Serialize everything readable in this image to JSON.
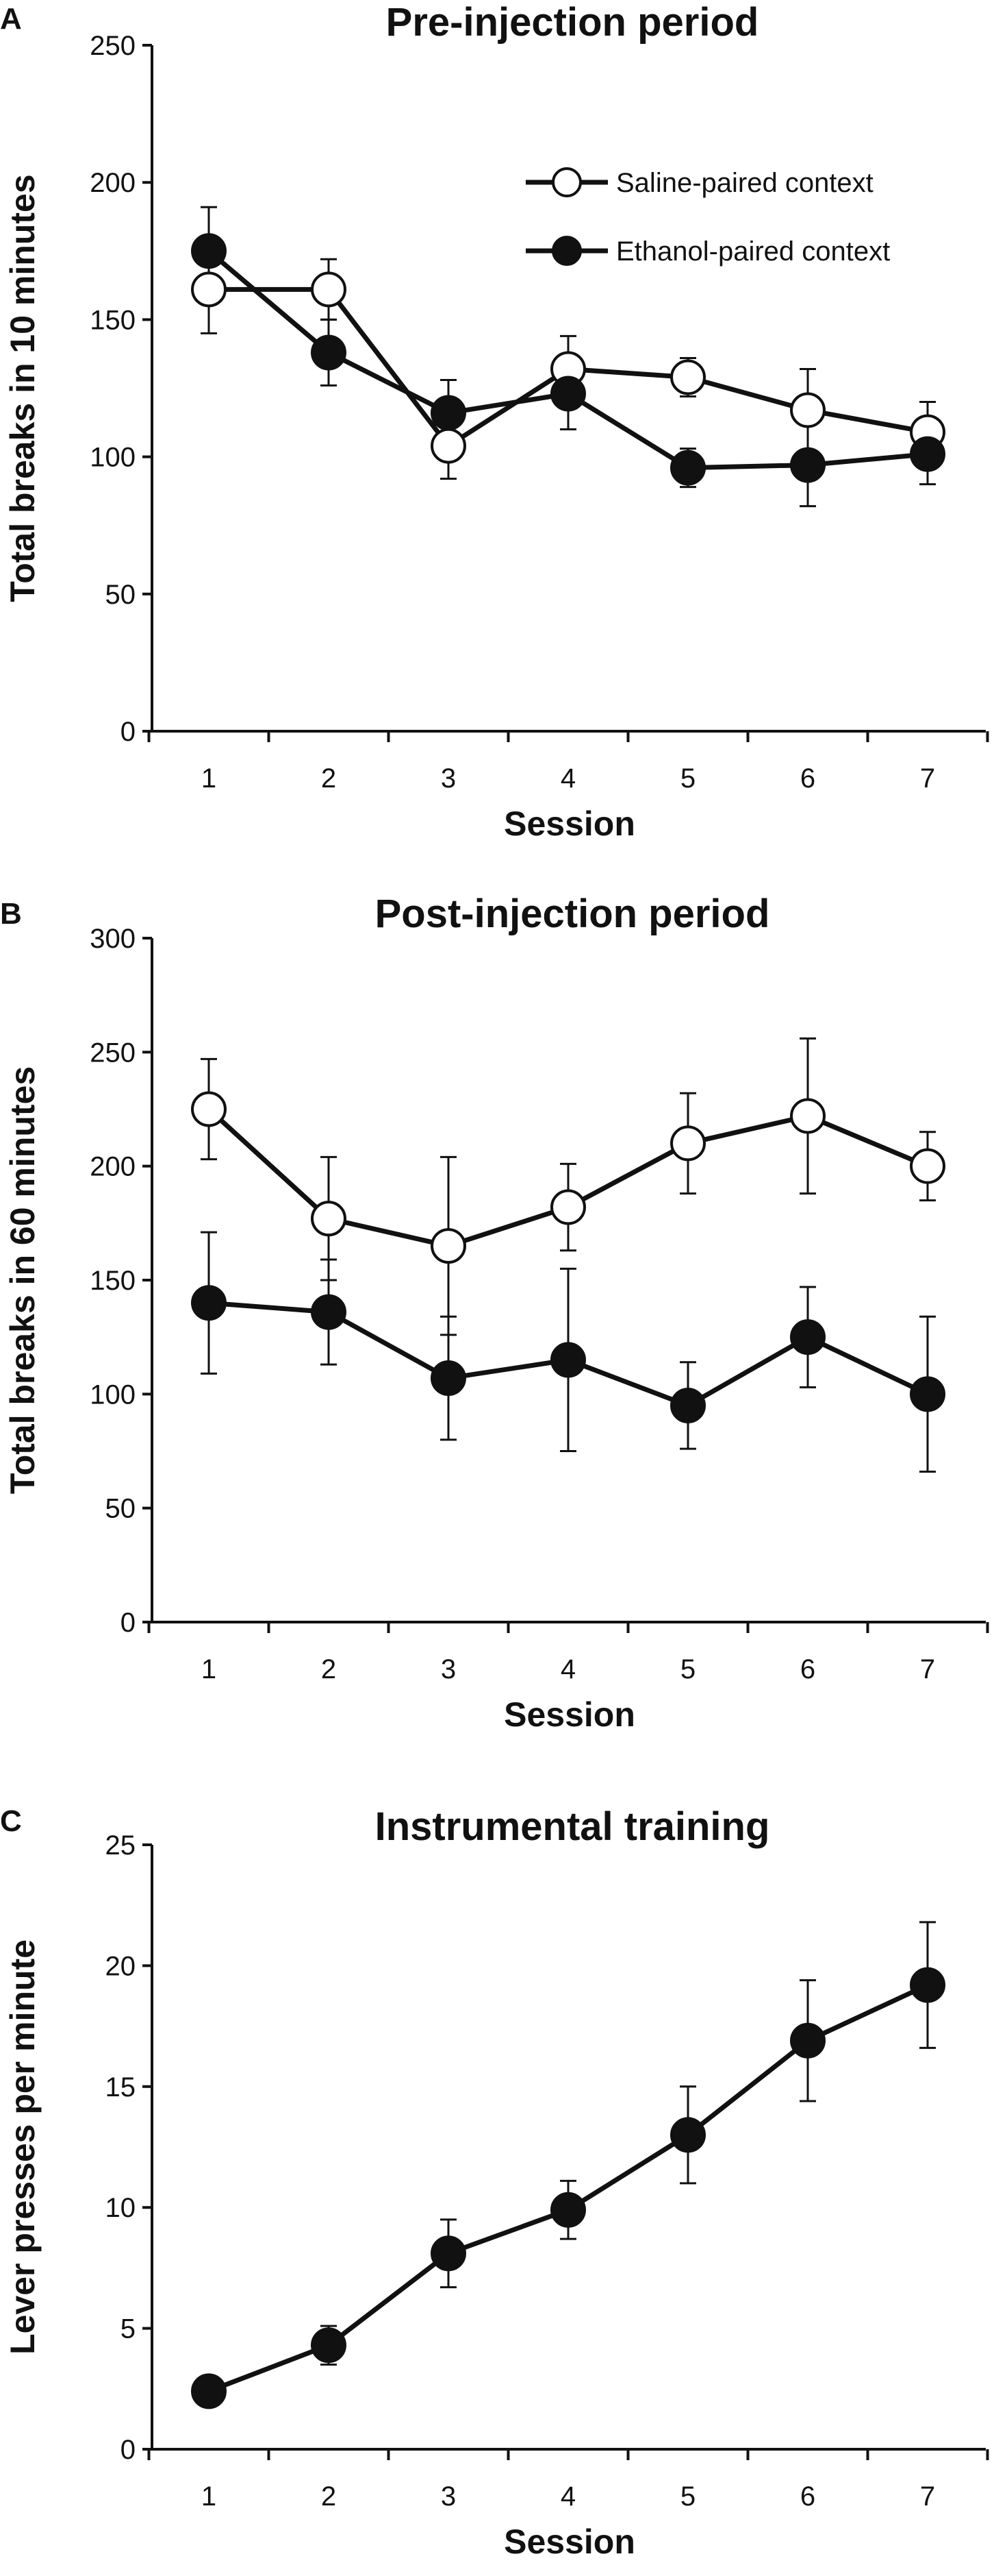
{
  "chart_data": [
    {
      "type": "line",
      "panel_label": "A",
      "title": "Pre-injection period",
      "xlabel": "Session",
      "ylabel": "Total breaks in 10 minutes",
      "categories": [
        "1",
        "2",
        "3",
        "4",
        "5",
        "6",
        "7"
      ],
      "ylim": [
        0,
        250
      ],
      "yticks": [
        0,
        50,
        100,
        150,
        200,
        250
      ],
      "legend": "top-right",
      "series": [
        {
          "name": "Saline-paired context",
          "marker": "open-circle",
          "values": [
            161,
            161,
            104,
            132,
            129,
            117,
            109
          ],
          "errors": [
            16,
            11,
            12,
            12,
            7,
            15,
            11
          ]
        },
        {
          "name": "Ethanol-paired context",
          "marker": "filled-circle",
          "values": [
            175,
            138,
            116,
            123,
            96,
            97,
            101
          ],
          "errors": [
            16,
            12,
            12,
            13,
            7,
            15,
            11
          ]
        }
      ]
    },
    {
      "type": "line",
      "panel_label": "B",
      "title": "Post-injection period",
      "xlabel": "Session",
      "ylabel": "Total breaks in 60 minutes",
      "categories": [
        "1",
        "2",
        "3",
        "4",
        "5",
        "6",
        "7"
      ],
      "ylim": [
        0,
        300
      ],
      "yticks": [
        0,
        50,
        100,
        150,
        200,
        250,
        300
      ],
      "series": [
        {
          "name": "Saline-paired context",
          "marker": "open-circle",
          "values": [
            225,
            177,
            165,
            182,
            210,
            222,
            200
          ],
          "errors": [
            22,
            27,
            39,
            19,
            22,
            34,
            15
          ]
        },
        {
          "name": "Ethanol-paired context",
          "marker": "filled-circle",
          "values": [
            140,
            136,
            107,
            115,
            95,
            125,
            100
          ],
          "errors": [
            31,
            23,
            27,
            40,
            19,
            22,
            34
          ]
        }
      ]
    },
    {
      "type": "line",
      "panel_label": "C",
      "title": "Instrumental training",
      "xlabel": "Session",
      "ylabel": "Lever presses per minute",
      "categories": [
        "1",
        "2",
        "3",
        "4",
        "5",
        "6",
        "7"
      ],
      "ylim": [
        0,
        25
      ],
      "yticks": [
        0,
        5,
        10,
        15,
        20,
        25
      ],
      "series": [
        {
          "name": "Lever presses",
          "marker": "filled-circle",
          "values": [
            2.4,
            4.3,
            8.1,
            9.9,
            13.0,
            16.9,
            19.2
          ],
          "errors": [
            0.3,
            0.8,
            1.4,
            1.2,
            2.0,
            2.5,
            2.6
          ]
        }
      ]
    }
  ]
}
